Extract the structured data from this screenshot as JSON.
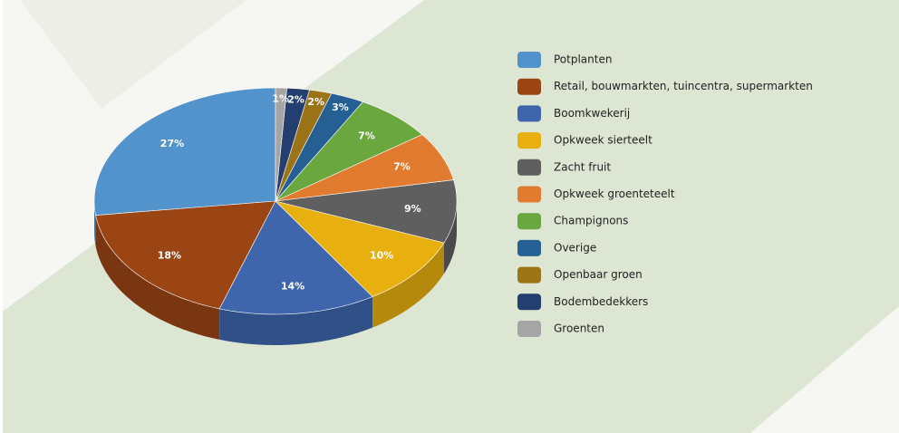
{
  "chart_data": {
    "type": "pie",
    "categories": [
      "Potplanten",
      "Retail, bouwmarkten, tuincentra, supermarkten",
      "Boomkwekerij",
      "Opkweek sierteelt",
      "Zacht fruit",
      "Opkweek groenteteelt",
      "Champignons",
      "Overige",
      "Openbaar groen",
      "Bodembedekkers",
      "Groenten"
    ],
    "values": [
      27,
      18,
      14,
      10,
      9,
      7,
      7,
      3,
      2,
      2,
      1
    ],
    "value_labels": [
      "27%",
      "18%",
      "14%",
      "10%",
      "9%",
      "7%",
      "7%",
      "3%",
      "2%",
      "2%",
      "1%"
    ],
    "colors": [
      "#5293cc",
      "#9b4515",
      "#3f66ad",
      "#e8b00e",
      "#5f5f5f",
      "#e07b30",
      "#6ba73f",
      "#255f93",
      "#9a7416",
      "#243f6f",
      "#a5a5a5"
    ],
    "legend": "right"
  }
}
